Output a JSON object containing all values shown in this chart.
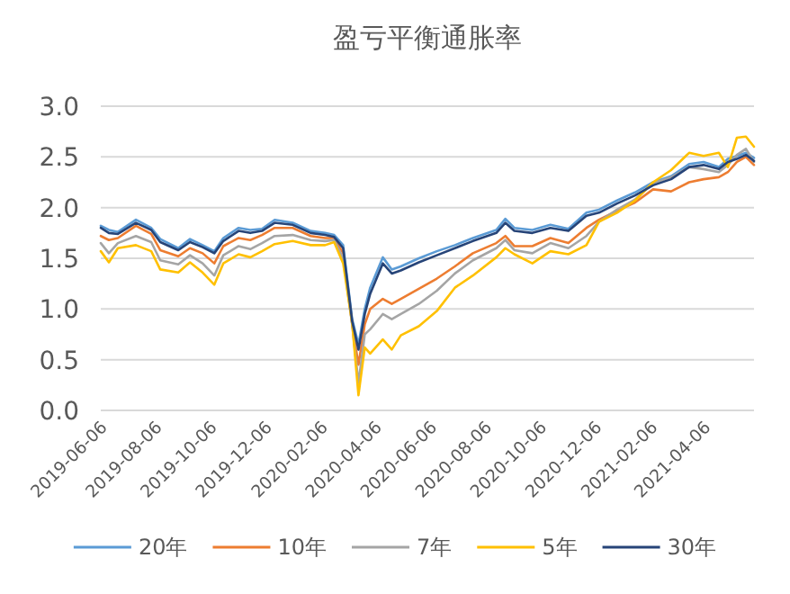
{
  "chart_data": {
    "type": "line",
    "title": "盈亏平衡通胀率",
    "x": [
      "2019-06-06",
      "2019-06-15",
      "2019-06-25",
      "2019-07-15",
      "2019-08-01",
      "2019-08-11",
      "2019-08-31",
      "2019-09-13",
      "2019-09-27",
      "2019-10-10",
      "2019-10-20",
      "2019-11-06",
      "2019-11-19",
      "2019-12-02",
      "2019-12-16",
      "2020-01-05",
      "2020-01-25",
      "2020-02-10",
      "2020-02-20",
      "2020-03-01",
      "2020-03-11",
      "2020-03-18",
      "2020-03-25",
      "2020-03-31",
      "2020-04-14",
      "2020-04-24",
      "2020-05-04",
      "2020-05-24",
      "2020-06-13",
      "2020-07-03",
      "2020-07-23",
      "2020-08-18",
      "2020-08-28",
      "2020-09-07",
      "2020-09-27",
      "2020-10-17",
      "2020-11-06",
      "2020-11-26",
      "2020-12-10",
      "2020-12-30",
      "2021-01-19",
      "2021-02-08",
      "2021-02-28",
      "2021-03-20",
      "2021-04-05",
      "2021-04-22",
      "2021-05-02",
      "2021-05-12",
      "2021-05-22",
      "2021-05-31"
    ],
    "series": [
      {
        "name": "20年",
        "color": "#5b9bd5",
        "values": [
          1.82,
          1.78,
          1.76,
          1.88,
          1.8,
          1.69,
          1.6,
          1.69,
          1.63,
          1.57,
          1.7,
          1.8,
          1.78,
          1.79,
          1.88,
          1.85,
          1.77,
          1.75,
          1.73,
          1.63,
          0.9,
          0.65,
          1.0,
          1.21,
          1.51,
          1.39,
          1.42,
          1.5,
          1.57,
          1.63,
          1.7,
          1.78,
          1.89,
          1.8,
          1.78,
          1.83,
          1.79,
          1.95,
          1.98,
          2.07,
          2.15,
          2.25,
          2.31,
          2.43,
          2.45,
          2.4,
          2.48,
          2.51,
          2.54,
          2.49
        ]
      },
      {
        "name": "10年",
        "color": "#ed7d31",
        "values": [
          1.72,
          1.68,
          1.7,
          1.82,
          1.74,
          1.58,
          1.52,
          1.6,
          1.55,
          1.45,
          1.62,
          1.7,
          1.68,
          1.73,
          1.8,
          1.8,
          1.72,
          1.7,
          1.7,
          1.55,
          0.85,
          0.45,
          0.85,
          1.0,
          1.1,
          1.05,
          1.1,
          1.2,
          1.3,
          1.42,
          1.55,
          1.65,
          1.72,
          1.62,
          1.62,
          1.7,
          1.65,
          1.8,
          1.88,
          1.97,
          2.05,
          2.18,
          2.16,
          2.25,
          2.28,
          2.3,
          2.35,
          2.45,
          2.5,
          2.42
        ]
      },
      {
        "name": "7年",
        "color": "#a5a5a5",
        "values": [
          1.65,
          1.55,
          1.65,
          1.72,
          1.66,
          1.48,
          1.44,
          1.53,
          1.45,
          1.33,
          1.53,
          1.62,
          1.59,
          1.65,
          1.72,
          1.73,
          1.68,
          1.67,
          1.68,
          1.5,
          0.85,
          0.27,
          0.75,
          0.8,
          0.95,
          0.9,
          0.95,
          1.05,
          1.18,
          1.35,
          1.48,
          1.6,
          1.68,
          1.58,
          1.55,
          1.65,
          1.6,
          1.72,
          1.86,
          1.98,
          2.08,
          2.24,
          2.3,
          2.4,
          2.38,
          2.35,
          2.42,
          2.52,
          2.58,
          2.45
        ]
      },
      {
        "name": "5年",
        "color": "#ffc000",
        "values": [
          1.57,
          1.46,
          1.6,
          1.63,
          1.57,
          1.39,
          1.36,
          1.46,
          1.36,
          1.24,
          1.45,
          1.54,
          1.51,
          1.57,
          1.64,
          1.67,
          1.63,
          1.63,
          1.66,
          1.45,
          0.86,
          0.15,
          0.62,
          0.56,
          0.7,
          0.6,
          0.74,
          0.83,
          0.98,
          1.21,
          1.33,
          1.51,
          1.6,
          1.54,
          1.45,
          1.57,
          1.54,
          1.63,
          1.86,
          1.95,
          2.07,
          2.25,
          2.37,
          2.54,
          2.51,
          2.54,
          2.4,
          2.69,
          2.7,
          2.6
        ]
      },
      {
        "name": "30年",
        "color": "#264478",
        "values": [
          1.8,
          1.75,
          1.74,
          1.85,
          1.78,
          1.66,
          1.58,
          1.66,
          1.61,
          1.55,
          1.67,
          1.77,
          1.75,
          1.77,
          1.85,
          1.83,
          1.75,
          1.73,
          1.71,
          1.6,
          0.88,
          0.6,
          0.95,
          1.15,
          1.45,
          1.35,
          1.38,
          1.46,
          1.53,
          1.6,
          1.67,
          1.75,
          1.85,
          1.77,
          1.75,
          1.8,
          1.77,
          1.92,
          1.95,
          2.04,
          2.12,
          2.22,
          2.28,
          2.4,
          2.42,
          2.38,
          2.45,
          2.48,
          2.52,
          2.46
        ]
      }
    ],
    "xlim": [
      "2019-06-06",
      "2021-05-31"
    ],
    "xticks": [
      "2019-06-06",
      "2019-08-06",
      "2019-10-06",
      "2019-12-06",
      "2020-02-06",
      "2020-04-06",
      "2020-06-06",
      "2020-08-06",
      "2020-10-06",
      "2020-12-06",
      "2021-02-06",
      "2021-04-06"
    ],
    "ylim": [
      0,
      3
    ],
    "yticks": [
      {
        "value": 0,
        "label": "0.0"
      },
      {
        "value": 0.5,
        "label": "0.5"
      },
      {
        "value": 1,
        "label": "1.0"
      },
      {
        "value": 1.5,
        "label": "1.5"
      },
      {
        "value": 2,
        "label": "2.0"
      },
      {
        "value": 2.5,
        "label": "2.5"
      },
      {
        "value": 3,
        "label": "3.0"
      }
    ],
    "grid": "y",
    "legend": "bottom",
    "marker": "none",
    "line_style": "solid"
  }
}
